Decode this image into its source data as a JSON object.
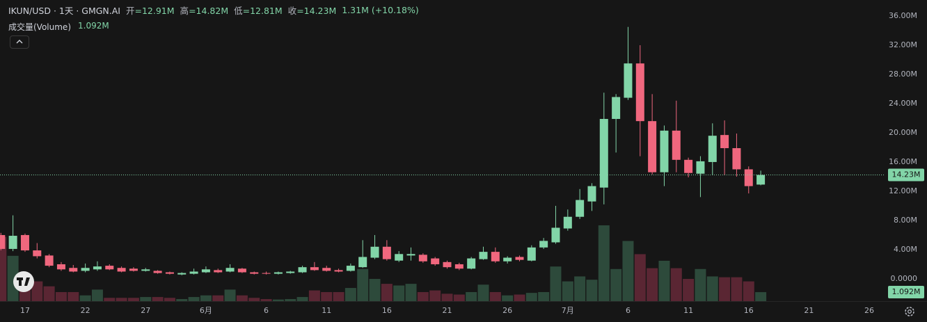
{
  "header": {
    "symbol": "IKUN/USD · 1天 · GMGN.AI",
    "ohlc": [
      {
        "label": "开",
        "value": "=12.91M"
      },
      {
        "label": "高",
        "value": "=14.82M"
      },
      {
        "label": "低",
        "value": "=12.81M"
      },
      {
        "label": "收",
        "value": "=14.23M"
      }
    ],
    "change": "1.31M (+10.18%)",
    "volume_label": "成交量(Volume)",
    "volume_value": "1.092M"
  },
  "chart_data": {
    "type": "candlestick",
    "categories": [
      null,
      null,
      "17",
      null,
      null,
      null,
      null,
      "22",
      null,
      null,
      null,
      null,
      "27",
      null,
      null,
      null,
      null,
      "6月",
      null,
      null,
      null,
      null,
      "6",
      null,
      null,
      null,
      null,
      "11",
      null,
      null,
      null,
      null,
      "16",
      null,
      null,
      null,
      null,
      "21",
      null,
      null,
      null,
      null,
      "26",
      null,
      null,
      null,
      null,
      "7月",
      null,
      null,
      null,
      null,
      "6",
      null,
      null,
      null,
      null,
      "11",
      null,
      null,
      null,
      null,
      "16",
      null,
      null,
      null,
      null,
      "21",
      null,
      null,
      null,
      null,
      "26"
    ],
    "open": [
      6.0,
      4.1,
      6.0,
      3.9,
      3.2,
      2.0,
      1.5,
      1.1,
      1.3,
      1.8,
      1.5,
      1.4,
      1.1,
      1.1,
      0.9,
      0.6,
      0.7,
      0.9,
      1.2,
      1.0,
      1.4,
      0.9,
      0.8,
      0.7,
      0.8,
      0.9,
      1.6,
      1.5,
      1.2,
      1.1,
      1.6,
      2.9,
      4.4,
      2.5,
      3.2,
      3.3,
      2.8,
      2.3,
      2.0,
      1.4,
      2.7,
      3.7,
      2.4,
      3.0,
      2.5,
      4.3,
      5.0,
      6.9,
      8.5,
      10.6,
      12.5,
      21.9,
      24.8,
      29.5,
      21.6,
      14.6,
      20.3,
      16.3,
      14.4,
      16.0,
      19.7,
      17.9,
      15.0,
      12.91,
      null,
      null,
      null,
      null,
      null,
      null,
      null,
      null,
      null
    ],
    "high": [
      6.3,
      8.7,
      6.2,
      4.9,
      3.4,
      2.3,
      1.9,
      2.1,
      2.4,
      2.0,
      1.7,
      1.6,
      1.5,
      1.2,
      1.0,
      0.9,
      1.4,
      1.7,
      1.4,
      2.0,
      1.5,
      1.0,
      1.0,
      1.0,
      1.1,
      1.8,
      2.3,
      1.8,
      1.4,
      2.1,
      5.3,
      6.0,
      5.3,
      3.8,
      4.3,
      3.5,
      3.0,
      2.5,
      2.2,
      3.0,
      4.4,
      4.3,
      3.1,
      3.2,
      4.6,
      5.6,
      10.0,
      9.5,
      12.3,
      13.1,
      25.5,
      25.3,
      34.5,
      32.0,
      25.3,
      21.0,
      24.4,
      16.6,
      16.8,
      21.3,
      21.7,
      19.9,
      15.4,
      14.82,
      null,
      null,
      null,
      null,
      null,
      null,
      null,
      null,
      null
    ],
    "low": [
      3.9,
      3.8,
      3.7,
      2.8,
      1.6,
      1.1,
      0.9,
      0.9,
      1.1,
      1.2,
      0.9,
      1.0,
      1.0,
      0.7,
      0.6,
      0.5,
      0.6,
      0.8,
      0.8,
      0.9,
      0.8,
      0.6,
      0.6,
      0.6,
      0.7,
      0.8,
      1.1,
      1.0,
      0.9,
      1.0,
      1.5,
      2.7,
      2.5,
      2.3,
      2.5,
      2.2,
      1.8,
      1.4,
      1.2,
      1.3,
      2.6,
      2.2,
      2.1,
      2.4,
      2.4,
      4.1,
      4.8,
      6.6,
      8.2,
      9.3,
      10.2,
      17.3,
      24.5,
      16.8,
      14.3,
      12.7,
      14.6,
      13.9,
      11.2,
      14.2,
      14.2,
      14.0,
      11.7,
      12.81,
      null,
      null,
      null,
      null,
      null,
      null,
      null,
      null,
      null
    ],
    "close": [
      4.1,
      5.9,
      3.9,
      3.1,
      1.8,
      1.3,
      1.0,
      1.5,
      1.7,
      1.3,
      1.0,
      1.1,
      1.3,
      0.8,
      0.7,
      0.8,
      1.0,
      1.3,
      0.9,
      1.5,
      0.9,
      0.7,
      0.7,
      0.9,
      1.0,
      1.6,
      1.2,
      1.1,
      1.0,
      1.8,
      3.0,
      4.4,
      2.7,
      3.4,
      3.4,
      2.4,
      2.0,
      1.6,
      1.4,
      2.8,
      3.7,
      2.4,
      2.9,
      2.6,
      4.3,
      5.2,
      7.0,
      8.5,
      10.8,
      12.7,
      21.9,
      24.9,
      29.5,
      21.6,
      14.6,
      20.3,
      16.3,
      14.5,
      16.1,
      19.6,
      17.9,
      15.0,
      12.7,
      14.23,
      null,
      null,
      null,
      null,
      null,
      null,
      null,
      null,
      null
    ],
    "volume": [
      7.8,
      5.5,
      2.5,
      2.4,
      1.8,
      1.1,
      1.1,
      0.7,
      1.4,
      0.4,
      0.4,
      0.4,
      0.5,
      0.5,
      0.4,
      0.25,
      0.5,
      0.7,
      0.7,
      1.4,
      0.7,
      0.4,
      0.25,
      0.2,
      0.25,
      0.5,
      1.3,
      1.1,
      1.1,
      1.6,
      3.9,
      2.7,
      2.1,
      1.9,
      2.1,
      1.1,
      1.3,
      0.9,
      0.8,
      1.1,
      2.0,
      1.1,
      0.7,
      0.8,
      1.0,
      1.1,
      4.2,
      2.4,
      3.0,
      2.6,
      9.2,
      3.9,
      7.3,
      5.7,
      4.0,
      4.9,
      4.0,
      2.7,
      3.9,
      3.0,
      2.9,
      2.9,
      2.4,
      1.092,
      null,
      null,
      null,
      null,
      null,
      null,
      null,
      null,
      null
    ],
    "up_color": "#82d5a8",
    "down_color": "#f0677e",
    "volume_up_color": "#2d4a3b",
    "volume_down_color": "#5a2633",
    "ylim": [
      -3.05,
      37.71
    ],
    "yticks": [
      {
        "value": 0,
        "label": "0.0000"
      },
      {
        "value": 4,
        "label": "4.00M"
      },
      {
        "value": 8,
        "label": "8.00M"
      },
      {
        "value": 12,
        "label": "12.00M"
      },
      {
        "value": 16,
        "label": "16.00M"
      },
      {
        "value": 20,
        "label": "20.00M"
      },
      {
        "value": 24,
        "label": "24.00M"
      },
      {
        "value": 28,
        "label": "28.00M"
      },
      {
        "value": 32,
        "label": "32.00M"
      },
      {
        "value": 36,
        "label": "36.00M"
      }
    ],
    "last_price": {
      "value": 14.23,
      "label": "14.23M"
    },
    "grid": false
  }
}
